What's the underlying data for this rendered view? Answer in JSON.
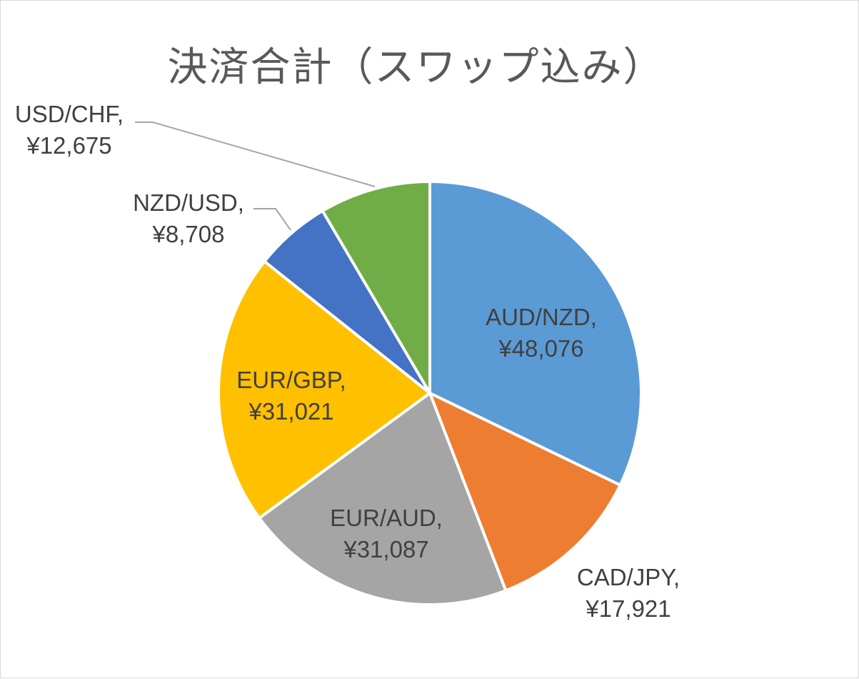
{
  "chart_data": {
    "type": "pie",
    "title": "決済合計（スワップ込み）",
    "start_angle_deg": 0,
    "direction": "clockwise",
    "legend": "none",
    "slices": [
      {
        "label": "AUD/NZD",
        "value": 48076,
        "value_label": "¥48,076",
        "color": "#5b9bd5"
      },
      {
        "label": "CAD/JPY",
        "value": 17921,
        "value_label": "¥17,921",
        "color": "#ed7d31"
      },
      {
        "label": "EUR/AUD",
        "value": 31087,
        "value_label": "¥31,087",
        "color": "#a5a5a5"
      },
      {
        "label": "EUR/GBP",
        "value": 31021,
        "value_label": "¥31,021",
        "color": "#ffc000"
      },
      {
        "label": "NZD/USD",
        "value": 8708,
        "value_label": "¥8,708",
        "color": "#4472c4"
      },
      {
        "label": "USD/CHF",
        "value": 12675,
        "value_label": "¥12,675",
        "color": "#70ad47"
      }
    ]
  }
}
